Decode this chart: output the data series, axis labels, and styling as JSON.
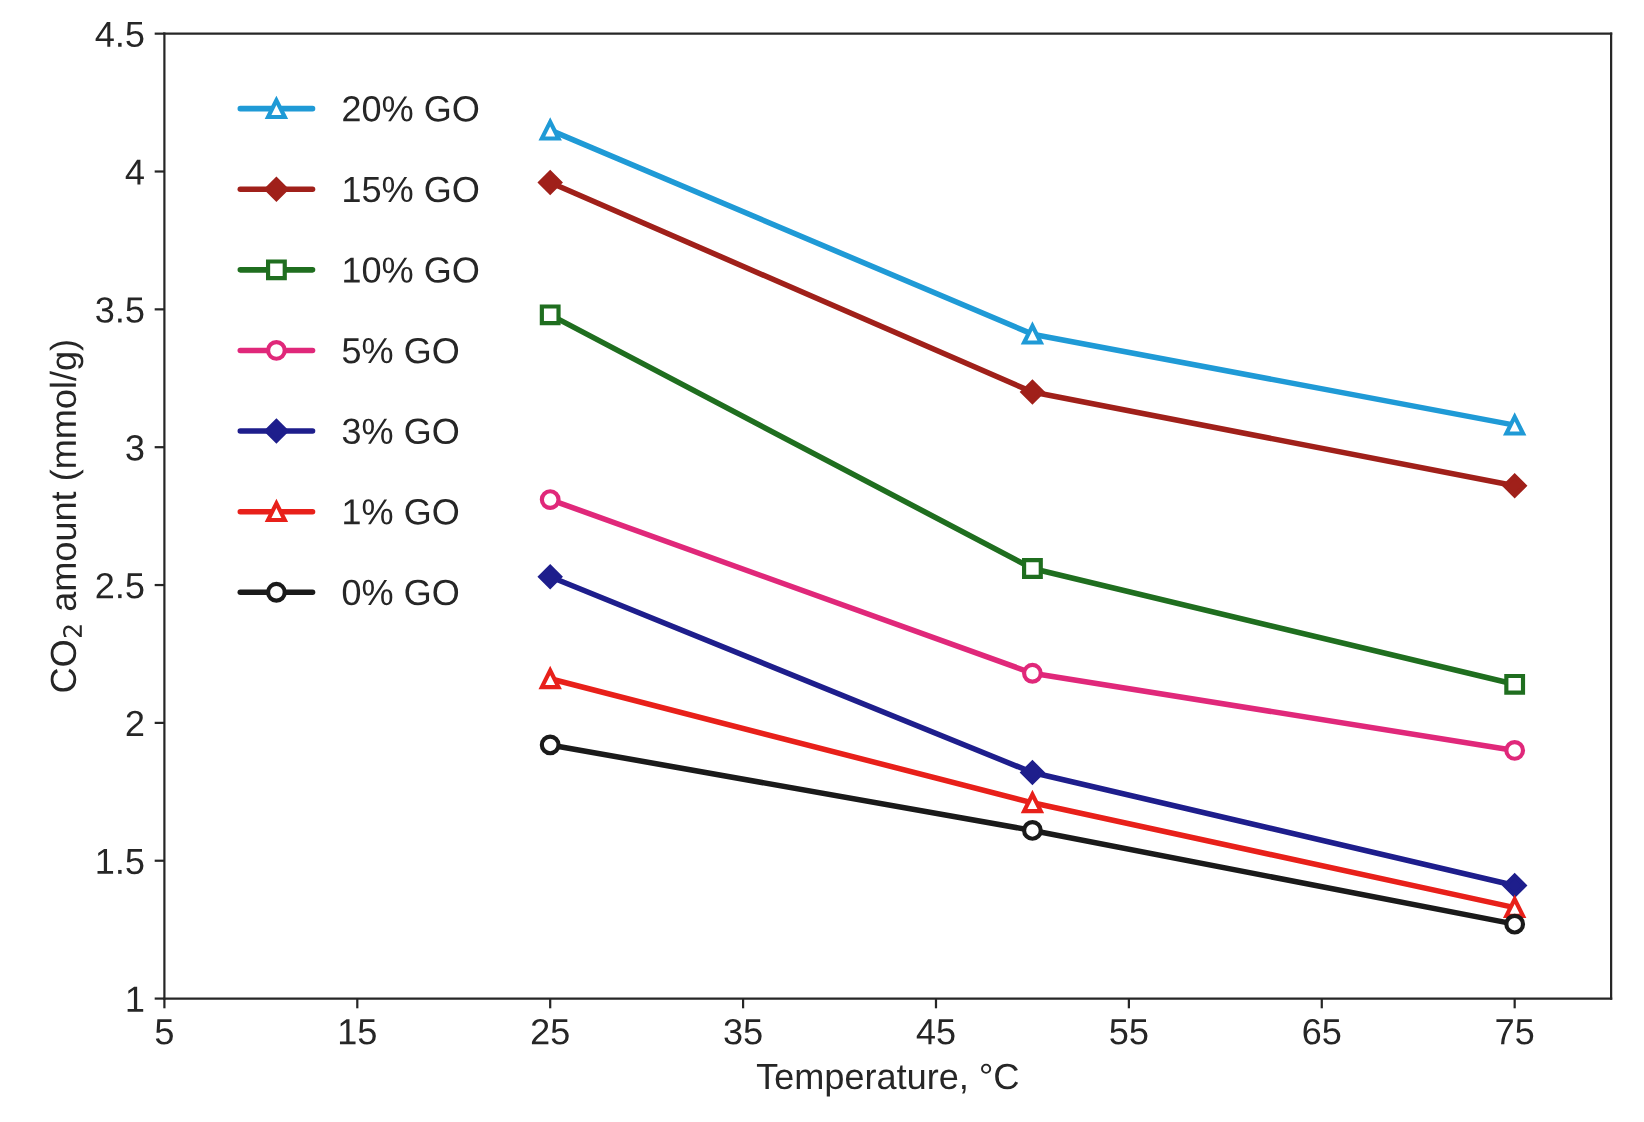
{
  "chart_data": {
    "type": "line",
    "xlabel": "Temperature, °C",
    "ylabel": "CO$_{2}$ amount (mmol/g)",
    "x": [
      25,
      50,
      75
    ],
    "xlim": [
      5,
      80
    ],
    "xticks": [
      5,
      15,
      25,
      35,
      45,
      55,
      65,
      75
    ],
    "ylim": [
      1,
      4.5
    ],
    "yticks": [
      1,
      1.5,
      2,
      2.5,
      3,
      3.5,
      4,
      4.5
    ],
    "grid": false,
    "legend": "top left",
    "line_style": "solid",
    "series": [
      {
        "name": "20% GO",
        "color": "#1f9ad6",
        "marker": "triangle",
        "values": [
          4.15,
          3.41,
          3.08
        ]
      },
      {
        "name": "15% GO",
        "color": "#a0201a",
        "marker": "diamond",
        "values": [
          3.96,
          3.2,
          2.86
        ]
      },
      {
        "name": "10% GO",
        "color": "#1f6e1f",
        "marker": "square",
        "values": [
          3.48,
          2.56,
          2.14
        ]
      },
      {
        "name": "5% GO",
        "color": "#e0287a",
        "marker": "circle",
        "values": [
          2.81,
          2.18,
          1.9
        ]
      },
      {
        "name": "3% GO",
        "color": "#1e1e8c",
        "marker": "diamond",
        "values": [
          2.53,
          1.82,
          1.41
        ]
      },
      {
        "name": "1% GO",
        "color": "#e8201a",
        "marker": "triangle",
        "values": [
          2.16,
          1.71,
          1.33
        ]
      },
      {
        "name": "0% GO",
        "color": "#1a1a1a",
        "marker": "circle",
        "values": [
          1.92,
          1.61,
          1.27
        ]
      }
    ]
  }
}
